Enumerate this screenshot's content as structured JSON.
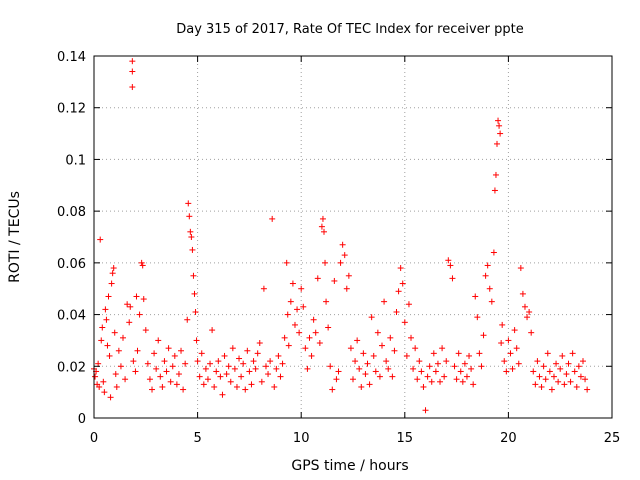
{
  "chart_data": {
    "type": "scatter",
    "title": "Day 315 of 2017, Rate Of TEC Index for receiver ppte",
    "xlabel": "GPS time / hours",
    "ylabel": "ROTI / TECUs",
    "xlim": [
      0,
      25
    ],
    "ylim": [
      0,
      0.14
    ],
    "xticks": [
      0,
      5,
      10,
      15,
      20,
      25
    ],
    "yticks": [
      0,
      0.02,
      0.04,
      0.06,
      0.08,
      0.1,
      0.12,
      0.14
    ],
    "xtick_labels": [
      "0",
      "5",
      "10",
      "15",
      "20",
      "25"
    ],
    "ytick_labels": [
      "0",
      "0.02",
      "0.04",
      "0.06",
      "0.08",
      "0.1",
      "0.12",
      "0.14"
    ],
    "grid": true,
    "marker": "+",
    "series_color": "#ff0000",
    "series": [
      {
        "name": "ROTI",
        "points": [
          [
            0.0,
            0.019
          ],
          [
            0.05,
            0.016
          ],
          [
            0.1,
            0.018
          ],
          [
            0.15,
            0.013
          ],
          [
            0.2,
            0.021
          ],
          [
            0.25,
            0.012
          ],
          [
            0.3,
            0.069
          ],
          [
            0.35,
            0.03
          ],
          [
            0.4,
            0.035
          ],
          [
            0.45,
            0.014
          ],
          [
            0.5,
            0.01
          ],
          [
            0.55,
            0.042
          ],
          [
            0.6,
            0.038
          ],
          [
            0.65,
            0.028
          ],
          [
            0.7,
            0.047
          ],
          [
            0.75,
            0.024
          ],
          [
            0.8,
            0.008
          ],
          [
            0.85,
            0.052
          ],
          [
            0.9,
            0.056
          ],
          [
            0.95,
            0.058
          ],
          [
            1.0,
            0.033
          ],
          [
            1.05,
            0.017
          ],
          [
            1.1,
            0.012
          ],
          [
            1.2,
            0.026
          ],
          [
            1.3,
            0.02
          ],
          [
            1.4,
            0.031
          ],
          [
            1.5,
            0.015
          ],
          [
            1.6,
            0.044
          ],
          [
            1.7,
            0.037
          ],
          [
            1.75,
            0.043
          ],
          [
            1.85,
            0.138
          ],
          [
            1.85,
            0.134
          ],
          [
            1.85,
            0.128
          ],
          [
            1.9,
            0.022
          ],
          [
            2.0,
            0.018
          ],
          [
            2.05,
            0.047
          ],
          [
            2.1,
            0.026
          ],
          [
            2.2,
            0.04
          ],
          [
            2.3,
            0.06
          ],
          [
            2.35,
            0.059
          ],
          [
            2.4,
            0.046
          ],
          [
            2.5,
            0.034
          ],
          [
            2.6,
            0.021
          ],
          [
            2.7,
            0.015
          ],
          [
            2.8,
            0.011
          ],
          [
            2.9,
            0.025
          ],
          [
            3.0,
            0.019
          ],
          [
            3.1,
            0.03
          ],
          [
            3.2,
            0.016
          ],
          [
            3.3,
            0.012
          ],
          [
            3.4,
            0.022
          ],
          [
            3.5,
            0.018
          ],
          [
            3.6,
            0.027
          ],
          [
            3.7,
            0.014
          ],
          [
            3.8,
            0.02
          ],
          [
            3.9,
            0.024
          ],
          [
            4.0,
            0.013
          ],
          [
            4.1,
            0.017
          ],
          [
            4.2,
            0.026
          ],
          [
            4.3,
            0.011
          ],
          [
            4.4,
            0.021
          ],
          [
            4.5,
            0.038
          ],
          [
            4.55,
            0.083
          ],
          [
            4.6,
            0.078
          ],
          [
            4.65,
            0.072
          ],
          [
            4.7,
            0.07
          ],
          [
            4.75,
            0.065
          ],
          [
            4.8,
            0.055
          ],
          [
            4.85,
            0.048
          ],
          [
            4.9,
            0.041
          ],
          [
            4.95,
            0.03
          ],
          [
            5.0,
            0.022
          ],
          [
            5.1,
            0.016
          ],
          [
            5.2,
            0.025
          ],
          [
            5.3,
            0.013
          ],
          [
            5.4,
            0.019
          ],
          [
            5.5,
            0.015
          ],
          [
            5.6,
            0.021
          ],
          [
            5.7,
            0.034
          ],
          [
            5.8,
            0.012
          ],
          [
            5.9,
            0.018
          ],
          [
            6.0,
            0.022
          ],
          [
            6.1,
            0.016
          ],
          [
            6.2,
            0.009
          ],
          [
            6.3,
            0.024
          ],
          [
            6.4,
            0.017
          ],
          [
            6.5,
            0.02
          ],
          [
            6.6,
            0.014
          ],
          [
            6.7,
            0.027
          ],
          [
            6.8,
            0.019
          ],
          [
            6.9,
            0.012
          ],
          [
            7.0,
            0.023
          ],
          [
            7.1,
            0.016
          ],
          [
            7.2,
            0.021
          ],
          [
            7.3,
            0.011
          ],
          [
            7.4,
            0.026
          ],
          [
            7.5,
            0.018
          ],
          [
            7.6,
            0.013
          ],
          [
            7.7,
            0.022
          ],
          [
            7.8,
            0.019
          ],
          [
            7.9,
            0.025
          ],
          [
            8.0,
            0.029
          ],
          [
            8.1,
            0.014
          ],
          [
            8.2,
            0.05
          ],
          [
            8.3,
            0.02
          ],
          [
            8.4,
            0.017
          ],
          [
            8.5,
            0.022
          ],
          [
            8.6,
            0.077
          ],
          [
            8.7,
            0.012
          ],
          [
            8.8,
            0.019
          ],
          [
            8.9,
            0.024
          ],
          [
            9.0,
            0.016
          ],
          [
            9.1,
            0.021
          ],
          [
            9.2,
            0.031
          ],
          [
            9.3,
            0.06
          ],
          [
            9.35,
            0.04
          ],
          [
            9.4,
            0.028
          ],
          [
            9.5,
            0.045
          ],
          [
            9.6,
            0.052
          ],
          [
            9.7,
            0.036
          ],
          [
            9.8,
            0.042
          ],
          [
            9.9,
            0.033
          ],
          [
            10.0,
            0.05
          ],
          [
            10.1,
            0.043
          ],
          [
            10.2,
            0.027
          ],
          [
            10.3,
            0.019
          ],
          [
            10.4,
            0.031
          ],
          [
            10.5,
            0.024
          ],
          [
            10.6,
            0.038
          ],
          [
            10.7,
            0.033
          ],
          [
            10.8,
            0.054
          ],
          [
            10.9,
            0.029
          ],
          [
            11.0,
            0.074
          ],
          [
            11.05,
            0.077
          ],
          [
            11.1,
            0.072
          ],
          [
            11.15,
            0.06
          ],
          [
            11.2,
            0.045
          ],
          [
            11.3,
            0.035
          ],
          [
            11.4,
            0.02
          ],
          [
            11.5,
            0.011
          ],
          [
            11.6,
            0.053
          ],
          [
            11.7,
            0.015
          ],
          [
            11.8,
            0.018
          ],
          [
            11.9,
            0.06
          ],
          [
            12.0,
            0.067
          ],
          [
            12.1,
            0.063
          ],
          [
            12.2,
            0.05
          ],
          [
            12.3,
            0.055
          ],
          [
            12.4,
            0.027
          ],
          [
            12.5,
            0.015
          ],
          [
            12.6,
            0.022
          ],
          [
            12.7,
            0.03
          ],
          [
            12.8,
            0.019
          ],
          [
            12.9,
            0.012
          ],
          [
            13.0,
            0.025
          ],
          [
            13.1,
            0.017
          ],
          [
            13.2,
            0.021
          ],
          [
            13.3,
            0.013
          ],
          [
            13.4,
            0.039
          ],
          [
            13.5,
            0.024
          ],
          [
            13.6,
            0.018
          ],
          [
            13.7,
            0.033
          ],
          [
            13.8,
            0.016
          ],
          [
            13.9,
            0.028
          ],
          [
            14.0,
            0.045
          ],
          [
            14.1,
            0.022
          ],
          [
            14.2,
            0.019
          ],
          [
            14.3,
            0.031
          ],
          [
            14.4,
            0.016
          ],
          [
            14.5,
            0.026
          ],
          [
            14.6,
            0.041
          ],
          [
            14.7,
            0.049
          ],
          [
            14.8,
            0.058
          ],
          [
            14.9,
            0.052
          ],
          [
            15.0,
            0.037
          ],
          [
            15.1,
            0.024
          ],
          [
            15.2,
            0.044
          ],
          [
            15.3,
            0.031
          ],
          [
            15.4,
            0.019
          ],
          [
            15.5,
            0.027
          ],
          [
            15.6,
            0.015
          ],
          [
            15.7,
            0.022
          ],
          [
            15.8,
            0.018
          ],
          [
            15.9,
            0.012
          ],
          [
            16.0,
            0.003
          ],
          [
            16.1,
            0.016
          ],
          [
            16.2,
            0.02
          ],
          [
            16.3,
            0.014
          ],
          [
            16.4,
            0.025
          ],
          [
            16.5,
            0.018
          ],
          [
            16.6,
            0.021
          ],
          [
            16.7,
            0.014
          ],
          [
            16.8,
            0.027
          ],
          [
            16.9,
            0.016
          ],
          [
            17.0,
            0.022
          ],
          [
            17.1,
            0.061
          ],
          [
            17.2,
            0.059
          ],
          [
            17.3,
            0.054
          ],
          [
            17.4,
            0.02
          ],
          [
            17.5,
            0.015
          ],
          [
            17.6,
            0.025
          ],
          [
            17.7,
            0.018
          ],
          [
            17.8,
            0.014
          ],
          [
            17.9,
            0.021
          ],
          [
            18.0,
            0.016
          ],
          [
            18.1,
            0.024
          ],
          [
            18.2,
            0.019
          ],
          [
            18.3,
            0.013
          ],
          [
            18.4,
            0.047
          ],
          [
            18.5,
            0.039
          ],
          [
            18.6,
            0.025
          ],
          [
            18.7,
            0.02
          ],
          [
            18.8,
            0.032
          ],
          [
            18.9,
            0.055
          ],
          [
            19.0,
            0.059
          ],
          [
            19.1,
            0.05
          ],
          [
            19.2,
            0.045
          ],
          [
            19.3,
            0.064
          ],
          [
            19.35,
            0.088
          ],
          [
            19.4,
            0.094
          ],
          [
            19.45,
            0.106
          ],
          [
            19.5,
            0.115
          ],
          [
            19.55,
            0.113
          ],
          [
            19.6,
            0.11
          ],
          [
            19.65,
            0.029
          ],
          [
            19.7,
            0.036
          ],
          [
            19.8,
            0.022
          ],
          [
            19.9,
            0.018
          ],
          [
            20.0,
            0.03
          ],
          [
            20.1,
            0.025
          ],
          [
            20.2,
            0.019
          ],
          [
            20.3,
            0.034
          ],
          [
            20.4,
            0.027
          ],
          [
            20.5,
            0.021
          ],
          [
            20.6,
            0.058
          ],
          [
            20.7,
            0.048
          ],
          [
            20.8,
            0.043
          ],
          [
            20.9,
            0.039
          ],
          [
            21.0,
            0.041
          ],
          [
            21.1,
            0.033
          ],
          [
            21.2,
            0.018
          ],
          [
            21.3,
            0.013
          ],
          [
            21.4,
            0.022
          ],
          [
            21.5,
            0.016
          ],
          [
            21.6,
            0.012
          ],
          [
            21.7,
            0.02
          ],
          [
            21.8,
            0.015
          ],
          [
            21.9,
            0.025
          ],
          [
            22.0,
            0.018
          ],
          [
            22.1,
            0.011
          ],
          [
            22.2,
            0.016
          ],
          [
            22.3,
            0.021
          ],
          [
            22.4,
            0.014
          ],
          [
            22.5,
            0.019
          ],
          [
            22.6,
            0.024
          ],
          [
            22.7,
            0.013
          ],
          [
            22.8,
            0.017
          ],
          [
            22.9,
            0.021
          ],
          [
            23.0,
            0.014
          ],
          [
            23.1,
            0.025
          ],
          [
            23.2,
            0.018
          ],
          [
            23.3,
            0.012
          ],
          [
            23.4,
            0.02
          ],
          [
            23.5,
            0.016
          ],
          [
            23.6,
            0.022
          ],
          [
            23.7,
            0.015
          ],
          [
            23.8,
            0.011
          ]
        ]
      }
    ]
  }
}
